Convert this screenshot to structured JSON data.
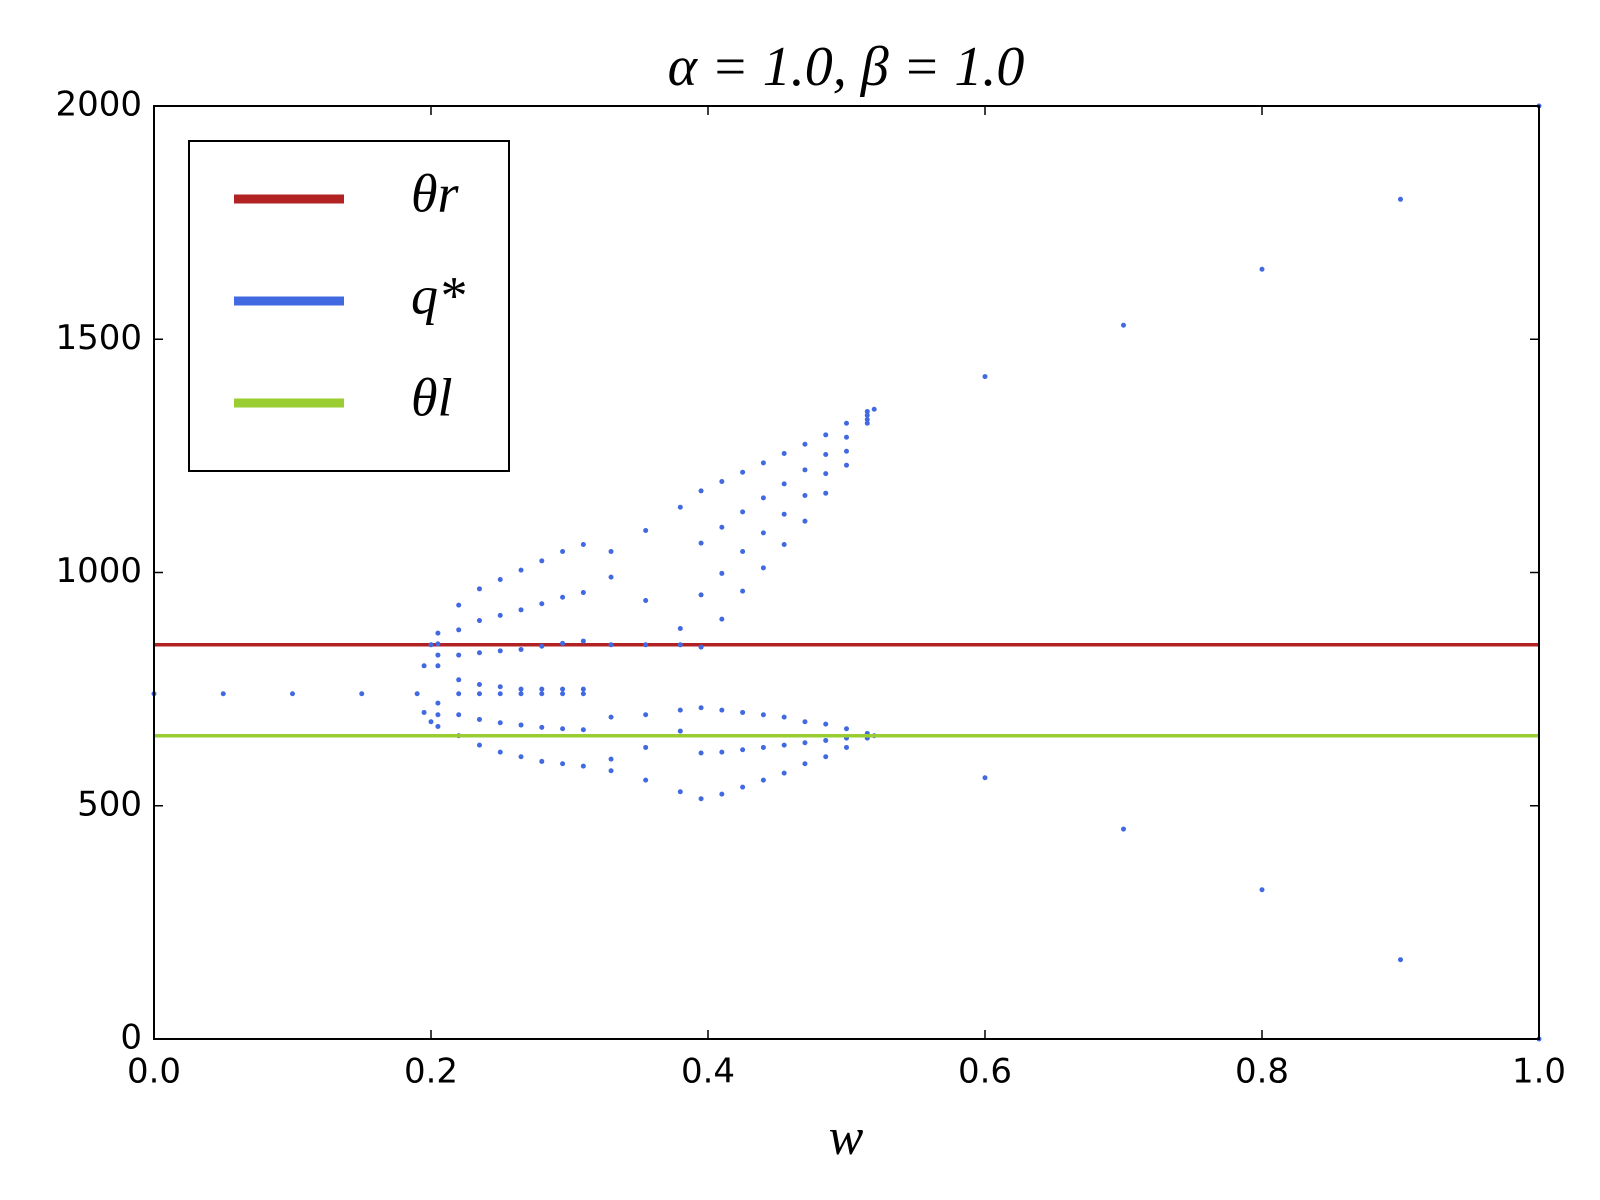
{
  "chart_data": {
    "type": "scatter",
    "title": "α = 1.0,  β = 1.0",
    "x_label": "w",
    "xlim": [
      0,
      1
    ],
    "ylim": [
      0,
      2000
    ],
    "xticks": [
      {
        "value": 0,
        "label": "0.0"
      },
      {
        "value": 0.2,
        "label": "0.2"
      },
      {
        "value": 0.4,
        "label": "0.4"
      },
      {
        "value": 0.6,
        "label": "0.6"
      },
      {
        "value": 0.8,
        "label": "0.8"
      },
      {
        "value": 1,
        "label": "1.0"
      }
    ],
    "yticks": [
      0,
      500,
      1000,
      1500,
      2000
    ],
    "legend": "upper left",
    "grid": false,
    "series": [
      {
        "name": "θr",
        "type": "line",
        "color": "#b22222",
        "x": [
          0,
          1
        ],
        "values": [
          845,
          845
        ]
      },
      {
        "name": "q*",
        "type": "scatter",
        "color": "#4169e1",
        "x": [
          0,
          0.05,
          0.1,
          0.15,
          0.19,
          0.195,
          0.195,
          0.2,
          0.2,
          0.205,
          0.205,
          0.205,
          0.205,
          0.205,
          0.205,
          0.205,
          0.22,
          0.22,
          0.22,
          0.22,
          0.22,
          0.22,
          0.22,
          0.235,
          0.235,
          0.235,
          0.235,
          0.235,
          0.235,
          0.235,
          0.25,
          0.25,
          0.25,
          0.25,
          0.25,
          0.25,
          0.25,
          0.265,
          0.265,
          0.265,
          0.265,
          0.265,
          0.265,
          0.265,
          0.28,
          0.28,
          0.28,
          0.28,
          0.28,
          0.28,
          0.28,
          0.295,
          0.295,
          0.295,
          0.295,
          0.295,
          0.295,
          0.295,
          0.31,
          0.31,
          0.31,
          0.31,
          0.31,
          0.31,
          0.31,
          0.33,
          0.355,
          0.38,
          0.33,
          0.355,
          0.38,
          0.33,
          0.355,
          0.38,
          0.33,
          0.355,
          0.38,
          0.33,
          0.355,
          0.38,
          0.33,
          0.355,
          0.38,
          0.395,
          0.395,
          0.395,
          0.395,
          0.395,
          0.395,
          0.395,
          0.41,
          0.41,
          0.41,
          0.41,
          0.41,
          0.41,
          0.41,
          0.425,
          0.425,
          0.425,
          0.425,
          0.425,
          0.425,
          0.425,
          0.44,
          0.44,
          0.44,
          0.44,
          0.44,
          0.44,
          0.44,
          0.455,
          0.455,
          0.455,
          0.455,
          0.455,
          0.455,
          0.455,
          0.47,
          0.47,
          0.47,
          0.47,
          0.47,
          0.47,
          0.47,
          0.485,
          0.485,
          0.485,
          0.485,
          0.485,
          0.485,
          0.485,
          0.5,
          0.5,
          0.5,
          0.5,
          0.5,
          0.5,
          0.5,
          0.515,
          0.515,
          0.515,
          0.515,
          0.515,
          0.515,
          0.515,
          0.52,
          0.6,
          0.7,
          0.8,
          0.9,
          1,
          0.52,
          0.6,
          0.7,
          0.8,
          0.9,
          1
        ],
        "values": [
          740,
          740,
          740,
          740,
          740,
          800,
          700,
          845,
          680,
          870,
          847,
          823,
          800,
          720,
          695,
          670,
          930,
          877,
          823,
          770,
          740,
          695,
          650,
          965,
          897,
          828,
          760,
          740,
          685,
          630,
          985,
          908,
          832,
          755,
          740,
          678,
          615,
          1005,
          920,
          835,
          750,
          740,
          673,
          605,
          1025,
          933,
          842,
          750,
          740,
          668,
          595,
          1045,
          947,
          848,
          750,
          740,
          665,
          590,
          1060,
          957,
          853,
          750,
          740,
          663,
          585,
          1045,
          1090,
          1140,
          990,
          940,
          880,
          845,
          845,
          845,
          690,
          695,
          705,
          600,
          625,
          660,
          575,
          555,
          530,
          1175,
          1063,
          952,
          840,
          710,
          613,
          515,
          1195,
          1097,
          998,
          900,
          705,
          615,
          525,
          1215,
          1130,
          1045,
          960,
          700,
          620,
          540,
          1235,
          1160,
          1085,
          1010,
          695,
          625,
          555,
          1255,
          1190,
          1125,
          1060,
          690,
          630,
          570,
          1275,
          1220,
          1165,
          1110,
          680,
          635,
          590,
          1295,
          1253,
          1212,
          1170,
          675,
          640,
          605,
          1320,
          1290,
          1260,
          1230,
          665,
          645,
          625,
          1345,
          1337,
          1328,
          1320,
          655,
          650,
          645,
          1350,
          1420,
          1530,
          1650,
          1800,
          2000,
          650,
          560,
          450,
          320,
          170,
          0
        ]
      },
      {
        "name": "θl",
        "type": "line",
        "color": "#9acd32",
        "x": [
          0,
          1
        ],
        "values": [
          650,
          650
        ]
      }
    ]
  }
}
